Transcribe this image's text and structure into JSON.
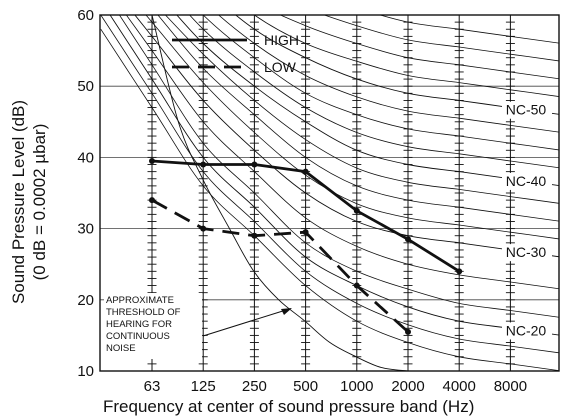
{
  "chart_data": {
    "type": "line",
    "x": [
      "63",
      "125",
      "250",
      "500",
      "1000",
      "2000",
      "4000",
      "8000"
    ],
    "xlabel": "Frequency at center of sound pressure band (Hz)",
    "ylabel": [
      "Sound Pressure Level (dB)",
      "(0 dB = 0.0002 µbar)"
    ],
    "ylim": [
      10,
      60
    ],
    "yticks": [
      10,
      20,
      30,
      40,
      50,
      60
    ],
    "grid": true,
    "legend_position": "top-left",
    "series": [
      {
        "name": "HIGH",
        "style": "solid",
        "values": [
          39.5,
          39,
          39,
          38,
          32.5,
          28.5,
          24,
          null
        ]
      },
      {
        "name": "LOW",
        "style": "dashed",
        "values": [
          34,
          30,
          29,
          29.5,
          22,
          15.5,
          null,
          null
        ]
      }
    ],
    "nc_curves": [
      {
        "label": "NC-20",
        "values": [
          51,
          40,
          33,
          26,
          22,
          19,
          17,
          16
        ]
      },
      {
        "label": "NC-30",
        "values": [
          57,
          48,
          41,
          35,
          31,
          29,
          28,
          27
        ]
      },
      {
        "label": "NC-40",
        "values": [
          64,
          56,
          50,
          45,
          41,
          39,
          38,
          37
        ]
      },
      {
        "label": "NC-50",
        "values": [
          71,
          64,
          58,
          54,
          51,
          49,
          48,
          47
        ]
      }
    ],
    "extra_contours": [
      [
        47,
        36,
        29,
        22,
        17,
        14,
        12,
        11
      ],
      [
        49,
        38,
        31,
        24,
        19.5,
        16.5,
        14.5,
        13.5
      ],
      [
        53,
        42,
        35,
        28,
        24,
        21.5,
        19.5,
        18.5
      ],
      [
        55,
        45,
        38,
        31.5,
        27.5,
        25,
        23.5,
        22.5
      ],
      [
        59,
        50.5,
        43.5,
        37.5,
        33.5,
        31.5,
        30.5,
        29.5
      ],
      [
        61,
        52.5,
        46,
        40,
        36,
        34,
        33,
        32
      ],
      [
        62,
        54.5,
        48,
        42.5,
        38.5,
        36.5,
        35.5,
        34.5
      ],
      [
        66,
        58,
        52,
        47,
        43.5,
        41.5,
        40.5,
        39.5
      ],
      [
        68,
        60,
        54,
        49,
        46,
        44,
        43,
        42
      ],
      [
        70,
        62,
        56,
        51.5,
        48.5,
        46.5,
        45.5,
        44.5
      ],
      [
        73,
        66,
        60,
        56,
        53.5,
        51.5,
        50.5,
        49.5
      ],
      [
        75,
        68,
        62,
        58.5,
        56,
        54,
        53,
        52
      ],
      [
        77,
        70,
        64.5,
        61,
        58.5,
        56.5,
        55.5,
        54.5
      ],
      [
        79,
        72,
        67,
        63.5,
        61,
        59,
        58,
        57
      ]
    ],
    "annotation": [
      "APPROXIMATE",
      "THRESHOLD OF",
      "HEARING FOR",
      "CONTINUOUS",
      "NOISE"
    ],
    "threshold_curve": [
      [
        63,
        60
      ],
      [
        90,
        45
      ],
      [
        125,
        37
      ],
      [
        180,
        30
      ],
      [
        250,
        24
      ],
      [
        350,
        20
      ],
      [
        500,
        17
      ],
      [
        700,
        14
      ],
      [
        1000,
        12
      ],
      [
        1400,
        10.5
      ],
      [
        2000,
        10
      ]
    ],
    "colors": {
      "ink": "#111111",
      "grid": "#444444",
      "background": "#ffffff"
    }
  }
}
